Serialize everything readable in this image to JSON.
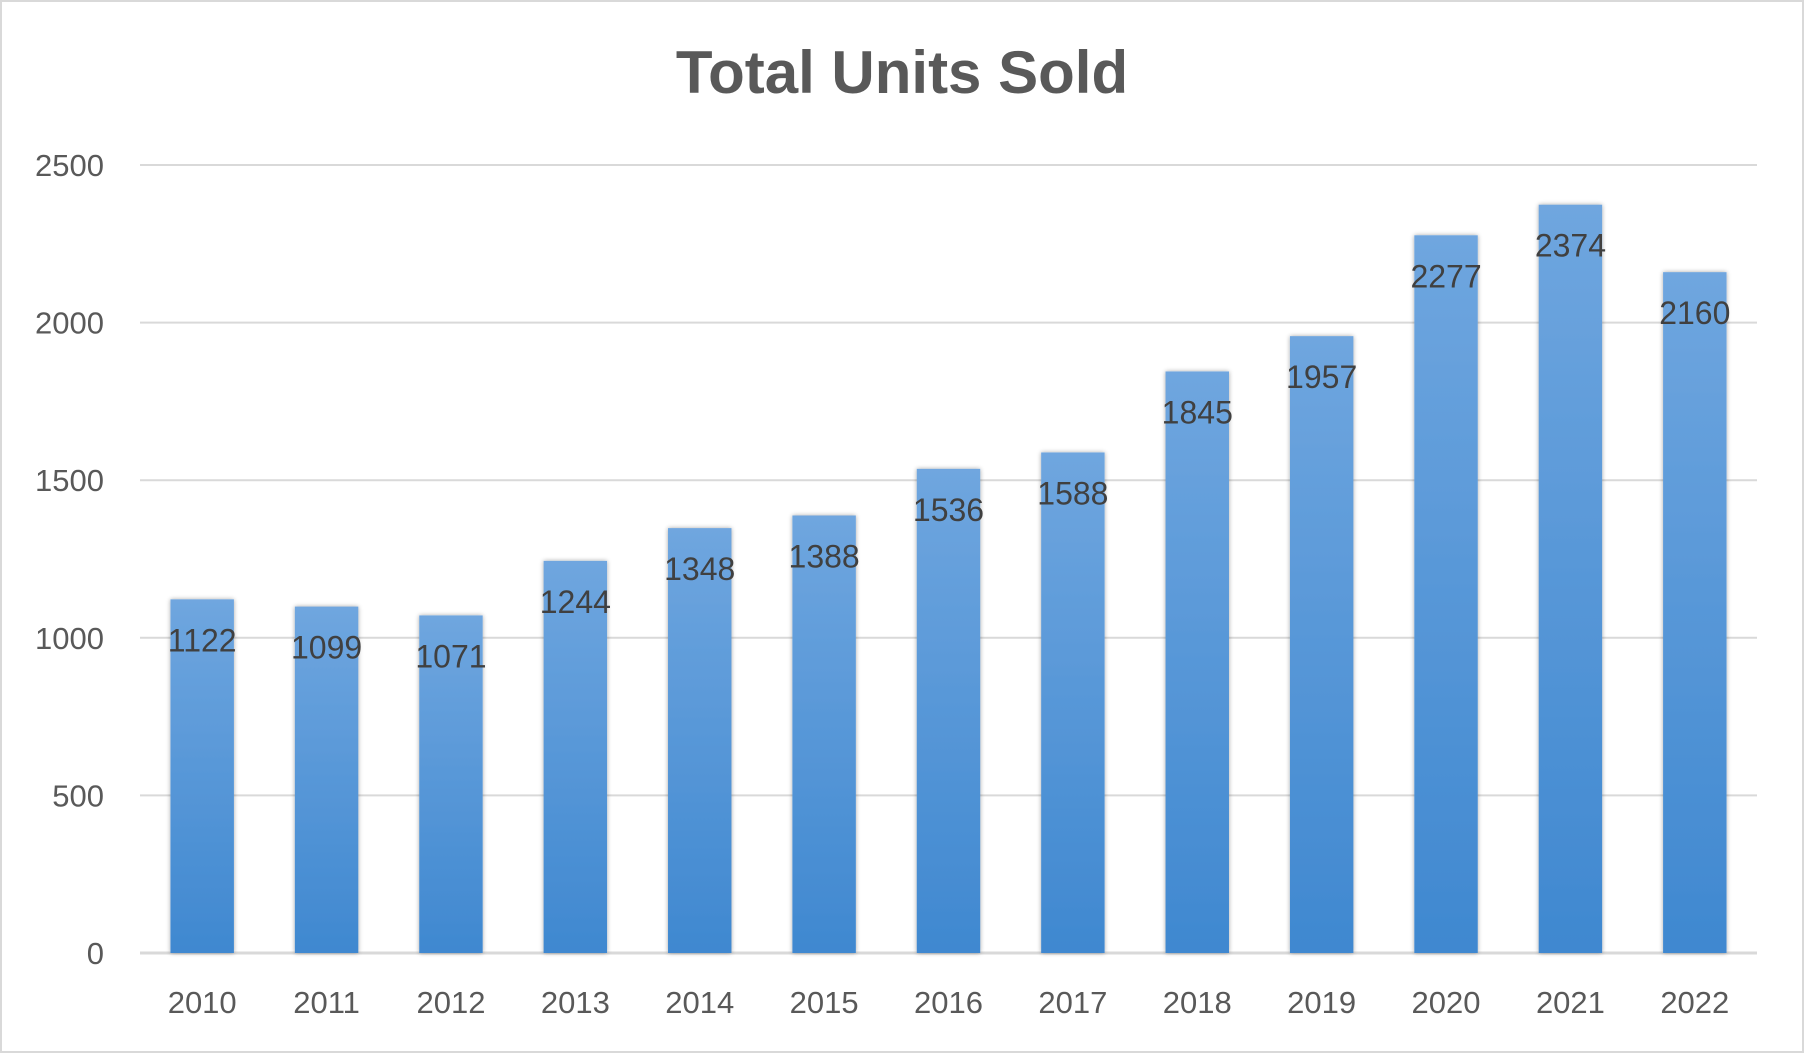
{
  "chart_data": {
    "type": "bar",
    "title": "Total Units Sold",
    "xlabel": "",
    "ylabel": "",
    "categories": [
      "2010",
      "2011",
      "2012",
      "2013",
      "2014",
      "2015",
      "2016",
      "2017",
      "2018",
      "2019",
      "2020",
      "2021",
      "2022"
    ],
    "values": [
      1122,
      1099,
      1071,
      1244,
      1348,
      1388,
      1536,
      1588,
      1845,
      1957,
      2277,
      2374,
      2160
    ],
    "ylim": [
      0,
      2500
    ],
    "yticks": [
      0,
      500,
      1000,
      1500,
      2000,
      2500
    ],
    "grid": true,
    "legend": "none",
    "data_labels": "inside-end",
    "colors": {
      "bar_top": "#6fa6df",
      "bar_bottom": "#3f88d0",
      "gridline": "#d9d9d9",
      "axis_text": "#595959",
      "title_text": "#595959",
      "data_label_text": "#404040"
    }
  }
}
